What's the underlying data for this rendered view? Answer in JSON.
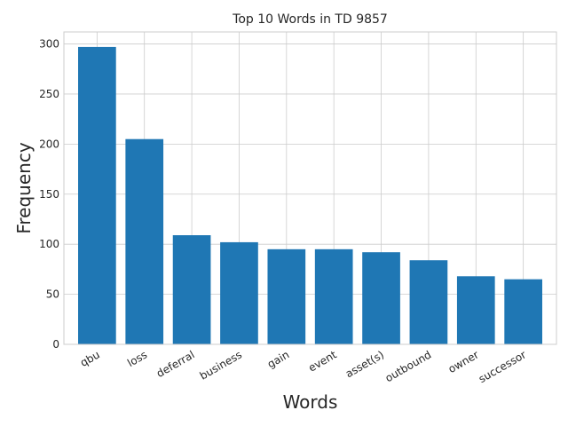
{
  "chart_data": {
    "type": "bar",
    "title": "Top 10 Words in TD 9857",
    "xlabel": "Words",
    "ylabel": "Frequency",
    "categories": [
      "qbu",
      "loss",
      "deferral",
      "business",
      "gain",
      "event",
      "asset(s)",
      "outbound",
      "owner",
      "successor"
    ],
    "values": [
      297,
      205,
      109,
      102,
      95,
      95,
      92,
      84,
      68,
      65
    ],
    "ylim": [
      0,
      312
    ],
    "yticks": [
      0,
      50,
      100,
      150,
      200,
      250,
      300
    ],
    "grid": true,
    "bar_color": "#1f77b4"
  }
}
